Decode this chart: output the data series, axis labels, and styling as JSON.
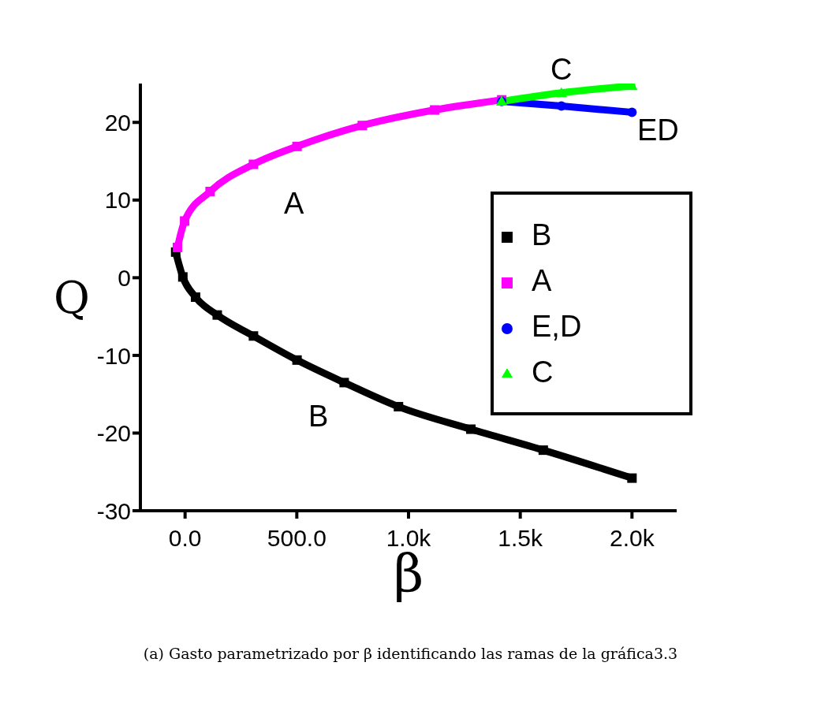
{
  "chart_data": {
    "type": "line",
    "xlabel": "β",
    "ylabel": "Q",
    "xlim": [
      -200,
      2200
    ],
    "ylim": [
      -30,
      25
    ],
    "xticks": [
      {
        "value": 0,
        "label": "0.0"
      },
      {
        "value": 500,
        "label": "500.0"
      },
      {
        "value": 1000,
        "label": "1.0k"
      },
      {
        "value": 1500,
        "label": "1.5k"
      },
      {
        "value": 2000,
        "label": "2.0k"
      }
    ],
    "yticks": [
      -30,
      -20,
      -10,
      0,
      10,
      20
    ],
    "grid": false,
    "legend": "right",
    "series": [
      {
        "name": "B",
        "color": "#000000",
        "marker": "square",
        "x": [
          -42,
          -10,
          47,
          144,
          306,
          501,
          712,
          955,
          1279,
          1603,
          2000
        ],
        "values": [
          3.3,
          0.1,
          -2.5,
          -4.8,
          -7.5,
          -10.6,
          -13.5,
          -16.6,
          -19.5,
          -22.2,
          -25.8
        ]
      },
      {
        "name": "A",
        "color": "#ff00ff",
        "marker": "square",
        "x": [
          -34,
          -2,
          112,
          306,
          501,
          793,
          1117,
          1417
        ],
        "values": [
          3.9,
          7.3,
          11.1,
          14.6,
          16.9,
          19.6,
          21.6,
          22.9
        ]
      },
      {
        "name": "E,D",
        "color": "#0000ff",
        "marker": "circle",
        "x": [
          1417,
          1684,
          2000
        ],
        "values": [
          22.7,
          22.1,
          21.3
        ]
      },
      {
        "name": "C",
        "color": "#00ff00",
        "marker": "triangle",
        "x": [
          1417,
          1684,
          2000
        ],
        "values": [
          22.7,
          23.8,
          24.7
        ]
      }
    ],
    "annotations": [
      "A",
      "B",
      "C",
      "ED",
      "(a) Gasto parametrizado por β identificando las ramas de la gráfica3.3"
    ]
  }
}
